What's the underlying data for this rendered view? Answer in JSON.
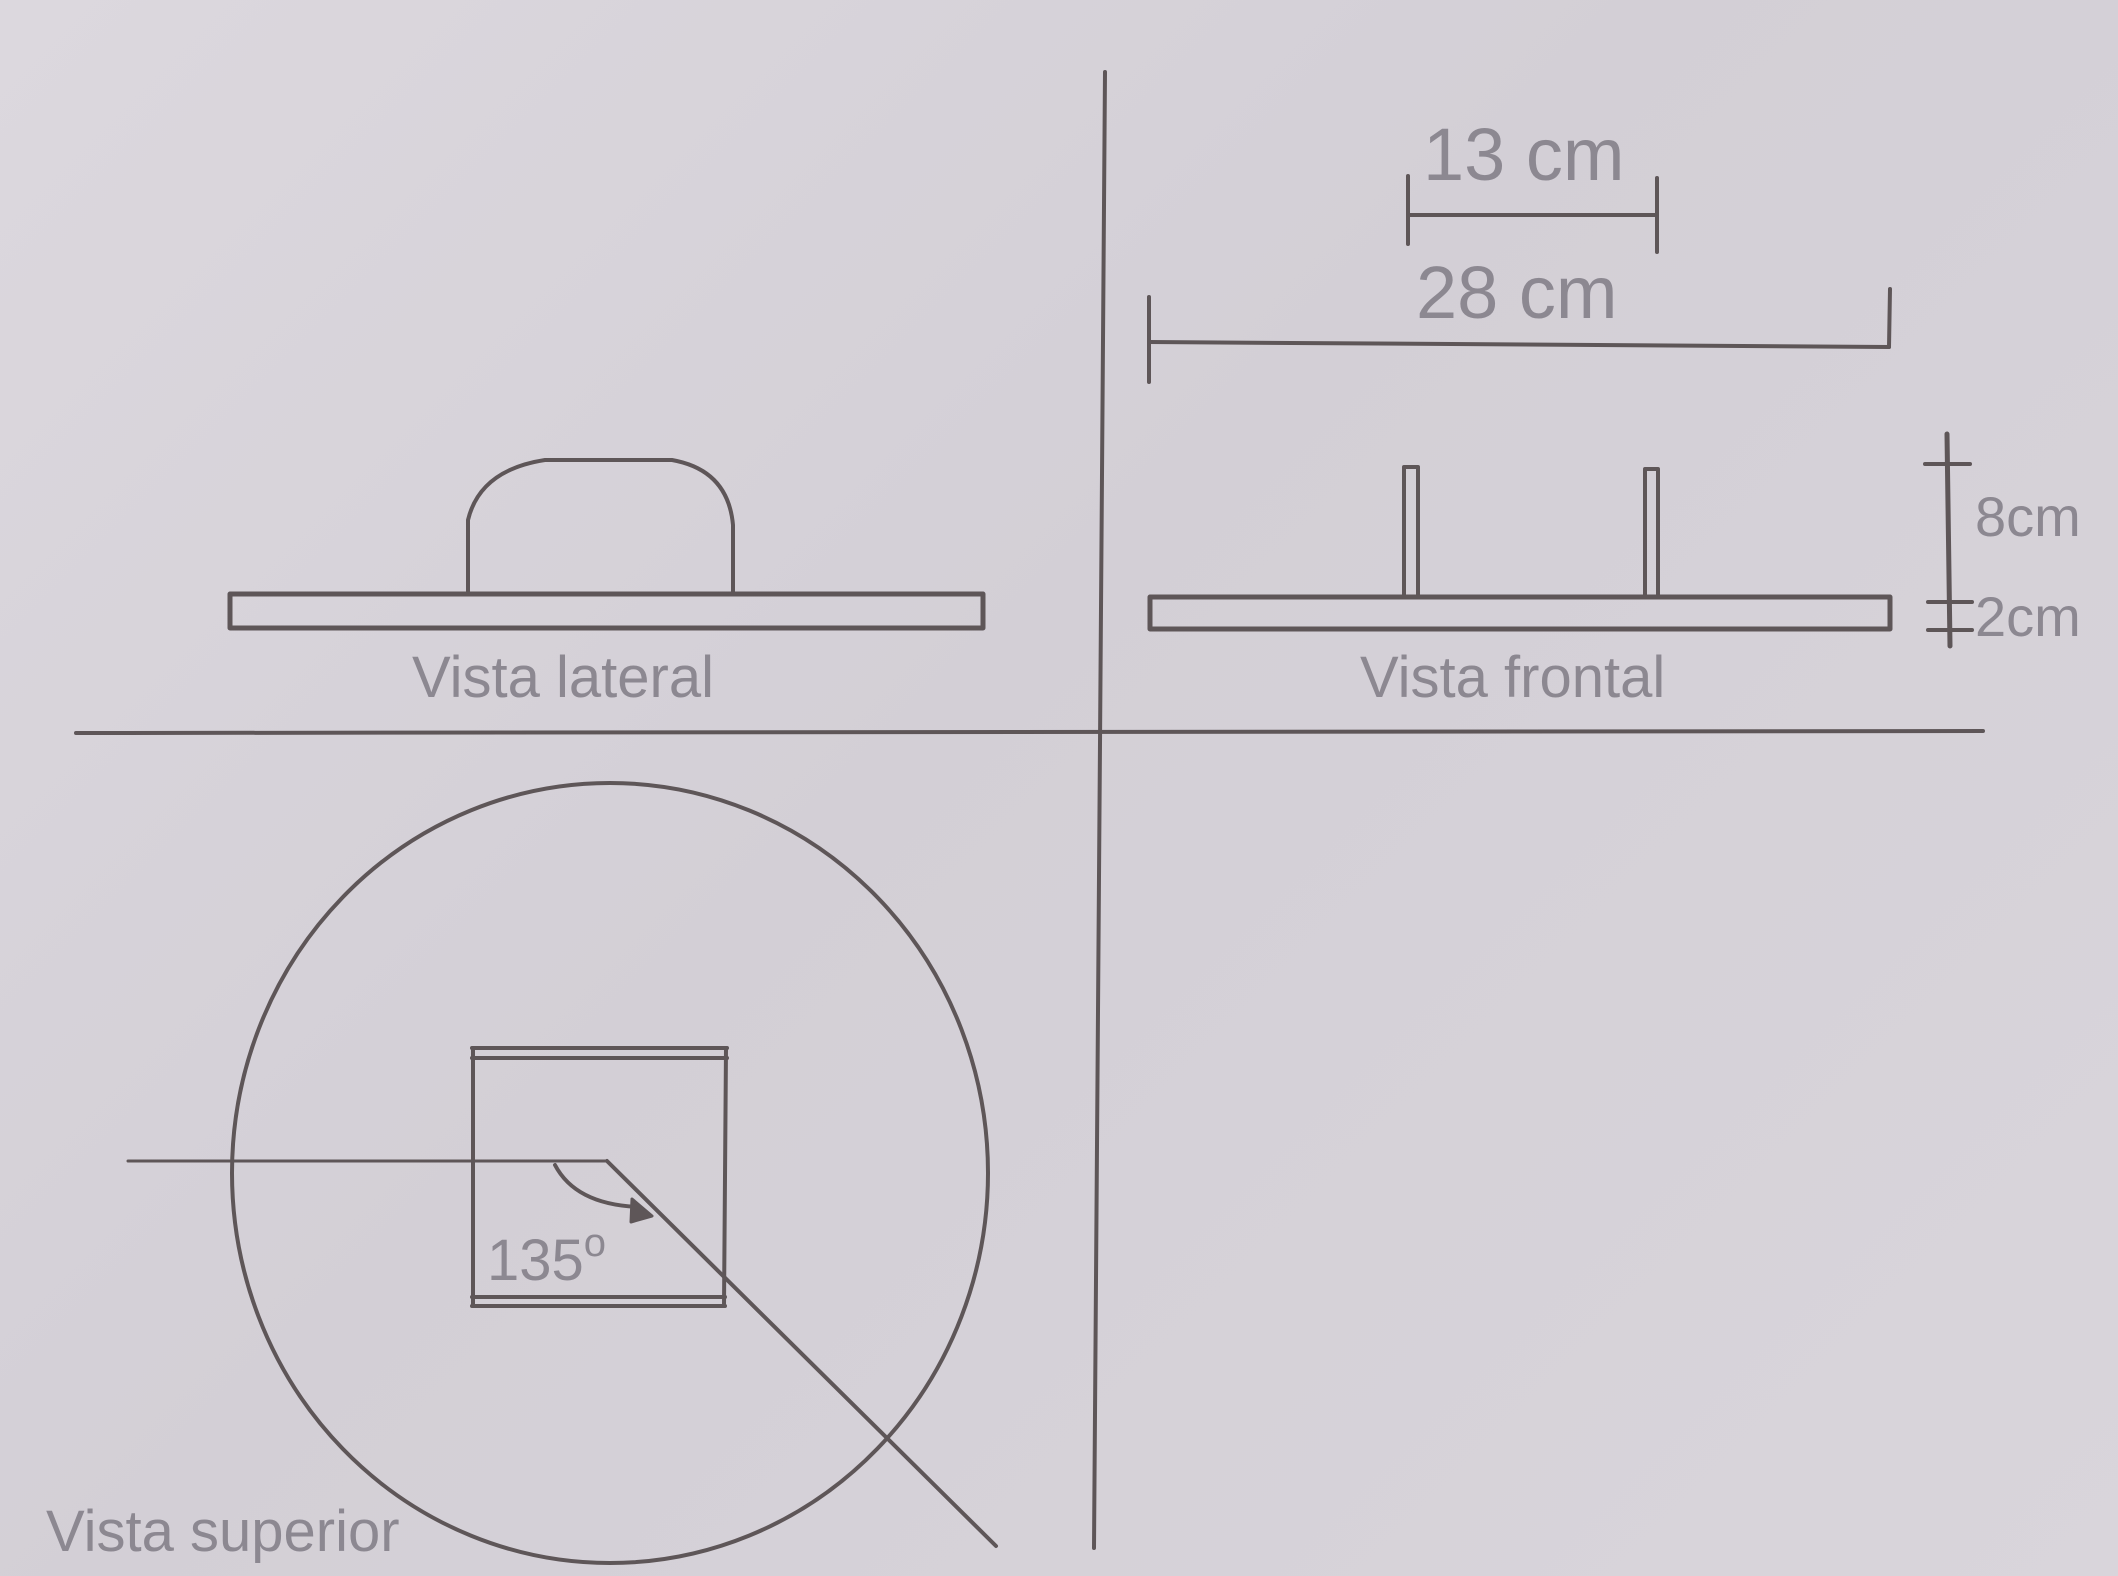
{
  "colors": {
    "paper": "#d7d3d9",
    "ink": "#5e5658",
    "label_text": "#8c8891"
  },
  "views": {
    "lateral": {
      "label": "Vista lateral"
    },
    "frontal": {
      "label": "Vista frontal"
    },
    "superior": {
      "label": "Vista superior"
    }
  },
  "dimensions": {
    "top_width": "13 cm",
    "total_width": "28 cm",
    "post_height": "8cm",
    "base_thickness": "2cm",
    "angle": "135",
    "angle_degree_mark": "o"
  }
}
